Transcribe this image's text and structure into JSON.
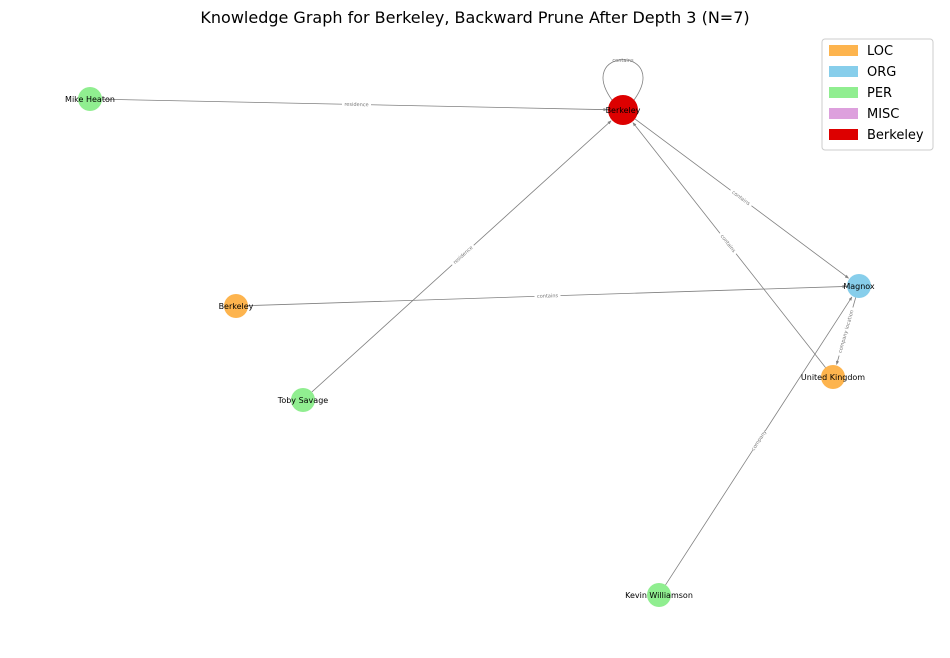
{
  "title": "Knowledge Graph for Berkeley, Backward Prune After Depth 3 (N=7)",
  "legend": [
    {
      "label": "LOC",
      "color": "#FDB44E"
    },
    {
      "label": "ORG",
      "color": "#87CEEB"
    },
    {
      "label": "PER",
      "color": "#90EE90"
    },
    {
      "label": "MISC",
      "color": "#DDA0DD"
    },
    {
      "label": "Berkeley",
      "color": "#DD0000"
    }
  ],
  "nodes": [
    {
      "id": "berkeley_center",
      "label": "Berkeley",
      "type": "Berkeley"
    },
    {
      "id": "mike_heaton",
      "label": "Mike Heaton",
      "type": "PER"
    },
    {
      "id": "magnox",
      "label": "Magnox",
      "type": "ORG"
    },
    {
      "id": "berkeley_loc",
      "label": "Berkeley",
      "type": "LOC"
    },
    {
      "id": "toby_savage",
      "label": "Toby Savage",
      "type": "PER"
    },
    {
      "id": "united_kingdom",
      "label": "United Kingdom",
      "type": "LOC"
    },
    {
      "id": "kevin_williamson",
      "label": "Kevin Williamson",
      "type": "PER"
    }
  ],
  "edges": [
    {
      "source": "berkeley_center",
      "target": "berkeley_center",
      "label": "contains"
    },
    {
      "source": "mike_heaton",
      "target": "berkeley_center",
      "label": "residence"
    },
    {
      "source": "berkeley_center",
      "target": "magnox",
      "label": "contains"
    },
    {
      "source": "toby_savage",
      "target": "berkeley_center",
      "label": "residence"
    },
    {
      "source": "united_kingdom",
      "target": "berkeley_center",
      "label": "contains"
    },
    {
      "source": "berkeley_loc",
      "target": "magnox",
      "label": "contains"
    },
    {
      "source": "magnox",
      "target": "united_kingdom",
      "label": "company location"
    },
    {
      "source": "kevin_williamson",
      "target": "magnox",
      "label": "company"
    }
  ]
}
